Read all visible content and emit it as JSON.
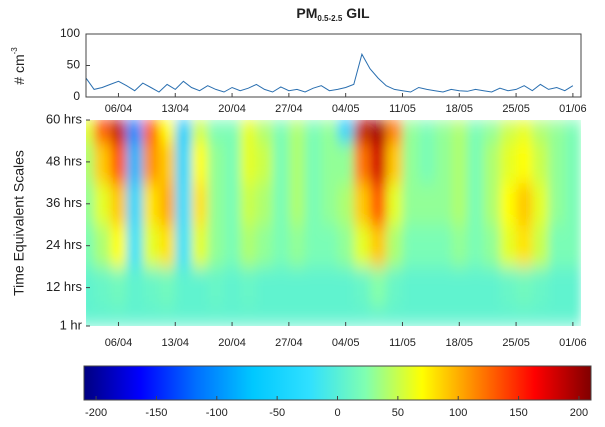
{
  "chart_data": [
    {
      "type": "line",
      "title": {
        "main": "PM",
        "sub": "0.5-2.5",
        "suffix": "GIL"
      },
      "y_label": {
        "main": "# cm",
        "sup": "-3"
      },
      "x": [
        1,
        2,
        3,
        4,
        5,
        6,
        7,
        8,
        9,
        10,
        11,
        12,
        13,
        14,
        15,
        16,
        17,
        18,
        19,
        20,
        21,
        22,
        23,
        24,
        25,
        26,
        27,
        28,
        29,
        30,
        31,
        32,
        33,
        34,
        35,
        36,
        37,
        38,
        39,
        40,
        41,
        42,
        43,
        44,
        45,
        46,
        47,
        48,
        49,
        50,
        51,
        52,
        53,
        54,
        55,
        56,
        57,
        58,
        59,
        60,
        61
      ],
      "series": [
        {
          "color": "#2a6fb0",
          "values": [
            30,
            12,
            15,
            20,
            25,
            18,
            10,
            22,
            15,
            8,
            20,
            12,
            25,
            15,
            10,
            18,
            12,
            8,
            15,
            10,
            14,
            20,
            12,
            8,
            16,
            10,
            12,
            8,
            14,
            18,
            10,
            12,
            15,
            20,
            68,
            45,
            30,
            18,
            12,
            10,
            8,
            15,
            12,
            10,
            8,
            12,
            10,
            9,
            12,
            10,
            8,
            14,
            10,
            12,
            18,
            10,
            20,
            12,
            15,
            10,
            18
          ]
        }
      ],
      "xlim": [
        1,
        62
      ],
      "xticks": [
        {
          "value": 5,
          "label": "06/04"
        },
        {
          "value": 12,
          "label": "13/04"
        },
        {
          "value": 19,
          "label": "20/04"
        },
        {
          "value": 26,
          "label": "27/04"
        },
        {
          "value": 33,
          "label": "04/05"
        },
        {
          "value": 40,
          "label": "11/05"
        },
        {
          "value": 47,
          "label": "18/05"
        },
        {
          "value": 54,
          "label": "25/05"
        },
        {
          "value": 61,
          "label": "01/06"
        }
      ],
      "ylim": [
        0,
        100
      ],
      "yticks": [
        0,
        50,
        100
      ]
    },
    {
      "type": "heatmap",
      "y_label": "Time Equivalent Scales",
      "x": [
        1,
        3,
        5,
        7,
        9,
        11,
        13,
        15,
        17,
        19,
        21,
        23,
        25,
        27,
        29,
        31,
        33,
        35,
        37,
        39,
        41,
        43,
        45,
        47,
        49,
        51,
        53,
        55,
        57,
        59,
        61
      ],
      "y": [
        1,
        12,
        24,
        36,
        48,
        60
      ],
      "values": [
        [
          5,
          5,
          5,
          5,
          5,
          5,
          5,
          5,
          5,
          5,
          5,
          5,
          5,
          5,
          5,
          5,
          5,
          5,
          5,
          5,
          5,
          5,
          5,
          5,
          5,
          5,
          5,
          5,
          5,
          5,
          5
        ],
        [
          5,
          10,
          15,
          5,
          10,
          15,
          5,
          5,
          10,
          5,
          10,
          5,
          5,
          5,
          5,
          5,
          5,
          10,
          25,
          10,
          5,
          5,
          5,
          5,
          5,
          5,
          10,
          15,
          10,
          5,
          5
        ],
        [
          20,
          40,
          70,
          -20,
          60,
          80,
          -20,
          60,
          30,
          20,
          40,
          30,
          20,
          30,
          20,
          20,
          30,
          60,
          90,
          40,
          20,
          20,
          20,
          30,
          20,
          30,
          60,
          80,
          50,
          20,
          20
        ],
        [
          30,
          60,
          90,
          -40,
          80,
          100,
          -30,
          80,
          30,
          20,
          50,
          40,
          20,
          40,
          20,
          30,
          40,
          90,
          130,
          60,
          30,
          30,
          30,
          40,
          20,
          40,
          70,
          90,
          60,
          30,
          20
        ],
        [
          40,
          90,
          130,
          -80,
          110,
          90,
          -40,
          70,
          30,
          20,
          60,
          50,
          20,
          40,
          20,
          30,
          30,
          120,
          180,
          90,
          30,
          20,
          30,
          40,
          20,
          40,
          60,
          70,
          50,
          30,
          20
        ],
        [
          60,
          140,
          190,
          -110,
          130,
          70,
          -60,
          50,
          20,
          20,
          60,
          40,
          20,
          40,
          20,
          30,
          -60,
          190,
          200,
          120,
          30,
          20,
          30,
          40,
          20,
          30,
          50,
          60,
          40,
          30,
          20
        ]
      ],
      "xlim": [
        1,
        62
      ],
      "xticks": [
        {
          "value": 5,
          "label": "06/04"
        },
        {
          "value": 12,
          "label": "13/04"
        },
        {
          "value": 19,
          "label": "20/04"
        },
        {
          "value": 26,
          "label": "27/04"
        },
        {
          "value": 33,
          "label": "04/05"
        },
        {
          "value": 40,
          "label": "11/05"
        },
        {
          "value": 47,
          "label": "18/05"
        },
        {
          "value": 54,
          "label": "25/05"
        },
        {
          "value": 61,
          "label": "01/06"
        }
      ],
      "ylim": [
        1,
        60
      ],
      "yticks": [
        {
          "value": 1,
          "label": "1 hr"
        },
        {
          "value": 12,
          "label": "12 hrs"
        },
        {
          "value": 24,
          "label": "24 hrs"
        },
        {
          "value": 36,
          "label": "36 hrs"
        },
        {
          "value": 48,
          "label": "48 hrs"
        },
        {
          "value": 60,
          "label": "60 hrs"
        }
      ],
      "clim": [
        -210,
        210
      ],
      "colorscale": [
        "#000080",
        "#0000ff",
        "#0070ff",
        "#00c8ff",
        "#30e0ff",
        "#80ffb0",
        "#ffff00",
        "#ff8000",
        "#ff0000",
        "#800000"
      ],
      "cticks": [
        -200,
        -150,
        -100,
        -50,
        0,
        50,
        100,
        150,
        200
      ]
    }
  ]
}
